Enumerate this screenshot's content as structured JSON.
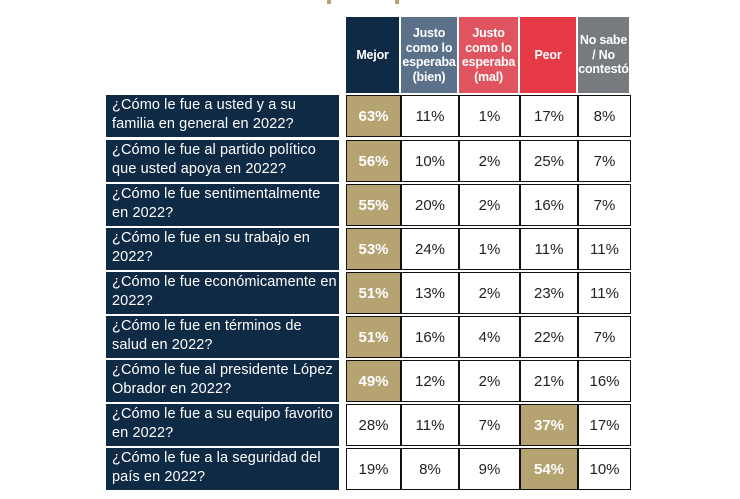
{
  "colors": {
    "navy": "#0f2a44",
    "gold": "#b5a372",
    "bien": "#5b7189",
    "mal": "#e0545f",
    "peor": "#e63946",
    "nosabe": "#777b80"
  },
  "columns": [
    "Mejor",
    "Justo como lo esperaba (bien)",
    "Justo como lo esperaba (mal)",
    "Peor",
    "No sabe / No contestó"
  ],
  "rows": [
    {
      "q": "¿Cómo le fue a usted y a su familia en general en 2022?",
      "v": [
        "63%",
        "11%",
        "1%",
        "17%",
        "8%"
      ],
      "hl": 0
    },
    {
      "q": "¿Cómo le fue al partido político que usted apoya en 2022?",
      "v": [
        "56%",
        "10%",
        "2%",
        "25%",
        "7%"
      ],
      "hl": 0
    },
    {
      "q": "¿Cómo le fue sentimentalmente en 2022?",
      "v": [
        "55%",
        "20%",
        "2%",
        "16%",
        "7%"
      ],
      "hl": 0
    },
    {
      "q": "¿Cómo le fue en su trabajo en 2022?",
      "v": [
        "53%",
        "24%",
        "1%",
        "11%",
        "11%"
      ],
      "hl": 0
    },
    {
      "q": "¿Cómo le fue económicamente en 2022?",
      "v": [
        "51%",
        "13%",
        "2%",
        "23%",
        "11%"
      ],
      "hl": 0
    },
    {
      "q": "¿Cómo le fue en términos de salud en 2022?",
      "v": [
        "51%",
        "16%",
        "4%",
        "22%",
        "7%"
      ],
      "hl": 0
    },
    {
      "q": "¿Cómo le fue al presidente López Obrador en 2022?",
      "v": [
        "49%",
        "12%",
        "2%",
        "21%",
        "16%"
      ],
      "hl": 0
    },
    {
      "q": "¿Cómo le fue a su equipo favorito en 2022?",
      "v": [
        "28%",
        "11%",
        "7%",
        "37%",
        "17%"
      ],
      "hl": 3
    },
    {
      "q": "¿Cómo le fue a la seguridad del país en 2022?",
      "v": [
        "19%",
        "8%",
        "9%",
        "54%",
        "10%"
      ],
      "hl": 3
    }
  ]
}
